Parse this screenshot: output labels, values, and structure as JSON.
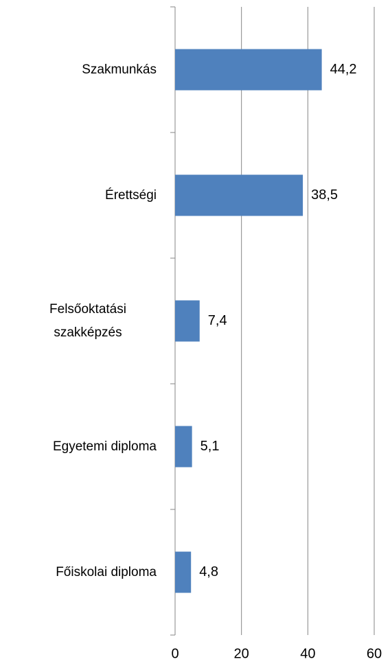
{
  "chart_data": {
    "type": "hbar",
    "categories": [
      "Szakmunkás",
      "Érettségi",
      "Felsőoktatási szakképzés",
      "Egyetemi diploma",
      "Főiskolai diploma"
    ],
    "values": [
      44.2,
      38.5,
      7.4,
      5.1,
      4.8
    ],
    "value_labels": [
      "44,2",
      "38,5",
      "7,4",
      "5,1",
      "4,8"
    ],
    "color": "#4f81bd",
    "xlim": [
      0,
      60
    ],
    "xticks": [
      0,
      20,
      40,
      60
    ],
    "grid": true
  }
}
